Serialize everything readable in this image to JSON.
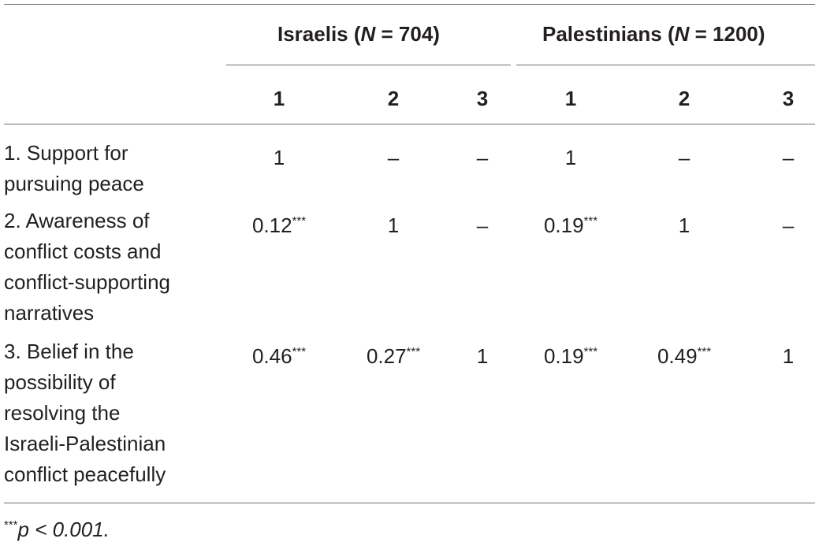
{
  "table": {
    "groups": [
      {
        "label": "Israelis (",
        "n_symbol": "N",
        "n_text": " = 704)"
      },
      {
        "label": "Palestinians (",
        "n_symbol": "N",
        "n_text": " = 1200)"
      }
    ],
    "column_numbers": [
      "1",
      "2",
      "3",
      "1",
      "2",
      "3"
    ],
    "rows": [
      {
        "label_lines": [
          "1. Support for",
          "pursuing peace"
        ],
        "cells": [
          {
            "v": "1",
            "s": ""
          },
          {
            "v": "–",
            "s": ""
          },
          {
            "v": "–",
            "s": ""
          },
          {
            "v": "1",
            "s": ""
          },
          {
            "v": "–",
            "s": ""
          },
          {
            "v": "–",
            "s": ""
          }
        ]
      },
      {
        "label_lines": [
          "2. Awareness of",
          "conflict costs and",
          "conflict-supporting",
          "narratives"
        ],
        "cells": [
          {
            "v": "0.12",
            "s": "***"
          },
          {
            "v": "1",
            "s": ""
          },
          {
            "v": "–",
            "s": ""
          },
          {
            "v": "0.19",
            "s": "***"
          },
          {
            "v": "1",
            "s": ""
          },
          {
            "v": "–",
            "s": ""
          }
        ]
      },
      {
        "label_lines": [
          "3. Belief in the",
          "possibility of",
          "resolving the",
          "Israeli-Palestinian",
          "conflict peacefully"
        ],
        "cells": [
          {
            "v": "0.46",
            "s": "***"
          },
          {
            "v": "0.27",
            "s": "***"
          },
          {
            "v": "1",
            "s": ""
          },
          {
            "v": "0.19",
            "s": "***"
          },
          {
            "v": "0.49",
            "s": "***"
          },
          {
            "v": "1",
            "s": ""
          }
        ]
      }
    ],
    "footnote": {
      "marker": "***",
      "text": "p < 0.001."
    }
  }
}
